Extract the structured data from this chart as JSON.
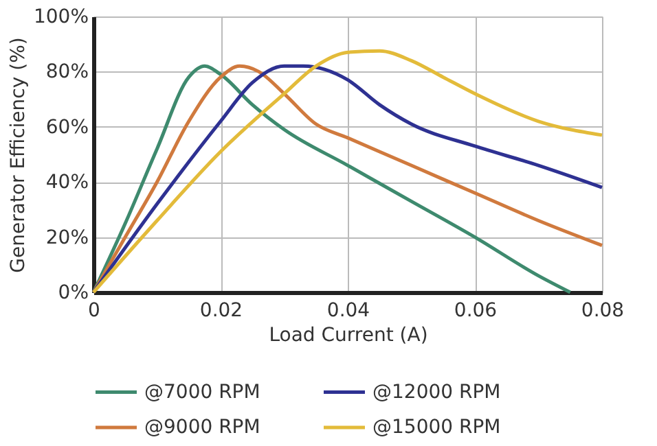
{
  "chart_data": {
    "type": "line",
    "xlabel": "Load Current (A)",
    "ylabel": "Generator Efficiency (%)",
    "xlim": [
      0,
      0.08
    ],
    "xticks": [
      0,
      0.02,
      0.04,
      0.06,
      0.08
    ],
    "ylim": [
      0,
      100
    ],
    "yticks": [
      {
        "value": 0,
        "label": "0%"
      },
      {
        "value": 20,
        "label": "20%"
      },
      {
        "value": 40,
        "label": "40%"
      },
      {
        "value": 60,
        "label": "60%"
      },
      {
        "value": 80,
        "label": "80%"
      },
      {
        "value": 100,
        "label": "100%"
      }
    ],
    "grid": true,
    "legend": "bottom",
    "marker": "none",
    "line_style": "solid",
    "series": [
      {
        "name": "@7000 RPM",
        "color": "#3e8a6e",
        "x": [
          0,
          0.005,
          0.01,
          0.015,
          0.0175,
          0.02,
          0.025,
          0.03,
          0.04,
          0.05,
          0.06,
          0.07,
          0.075
        ],
        "values": [
          0,
          25,
          52,
          78,
          82,
          79,
          68,
          59,
          46,
          33,
          20,
          6,
          0
        ]
      },
      {
        "name": "@9000 RPM",
        "color": "#d07a3e",
        "x": [
          0,
          0.005,
          0.01,
          0.015,
          0.02,
          0.023,
          0.026,
          0.03,
          0.035,
          0.04,
          0.05,
          0.06,
          0.07,
          0.08
        ],
        "values": [
          0,
          20,
          40,
          62,
          78,
          82,
          80,
          72,
          61,
          56,
          46,
          36,
          26,
          17
        ]
      },
      {
        "name": "@12000 RPM",
        "color": "#2e3192",
        "x": [
          0,
          0.01,
          0.02,
          0.025,
          0.03,
          0.033,
          0.04,
          0.045,
          0.05,
          0.06,
          0.07,
          0.08
        ],
        "values": [
          0,
          32,
          62,
          76,
          82,
          82,
          77,
          68,
          61,
          53,
          46,
          38
        ]
      },
      {
        "name": "@15000 RPM",
        "color": "#e3bb3a",
        "x": [
          0,
          0.01,
          0.02,
          0.03,
          0.035,
          0.04,
          0.045,
          0.05,
          0.055,
          0.06,
          0.07,
          0.08
        ],
        "values": [
          0,
          26,
          51,
          72,
          82,
          87,
          87.5,
          84,
          78,
          72,
          62,
          57
        ]
      }
    ]
  }
}
